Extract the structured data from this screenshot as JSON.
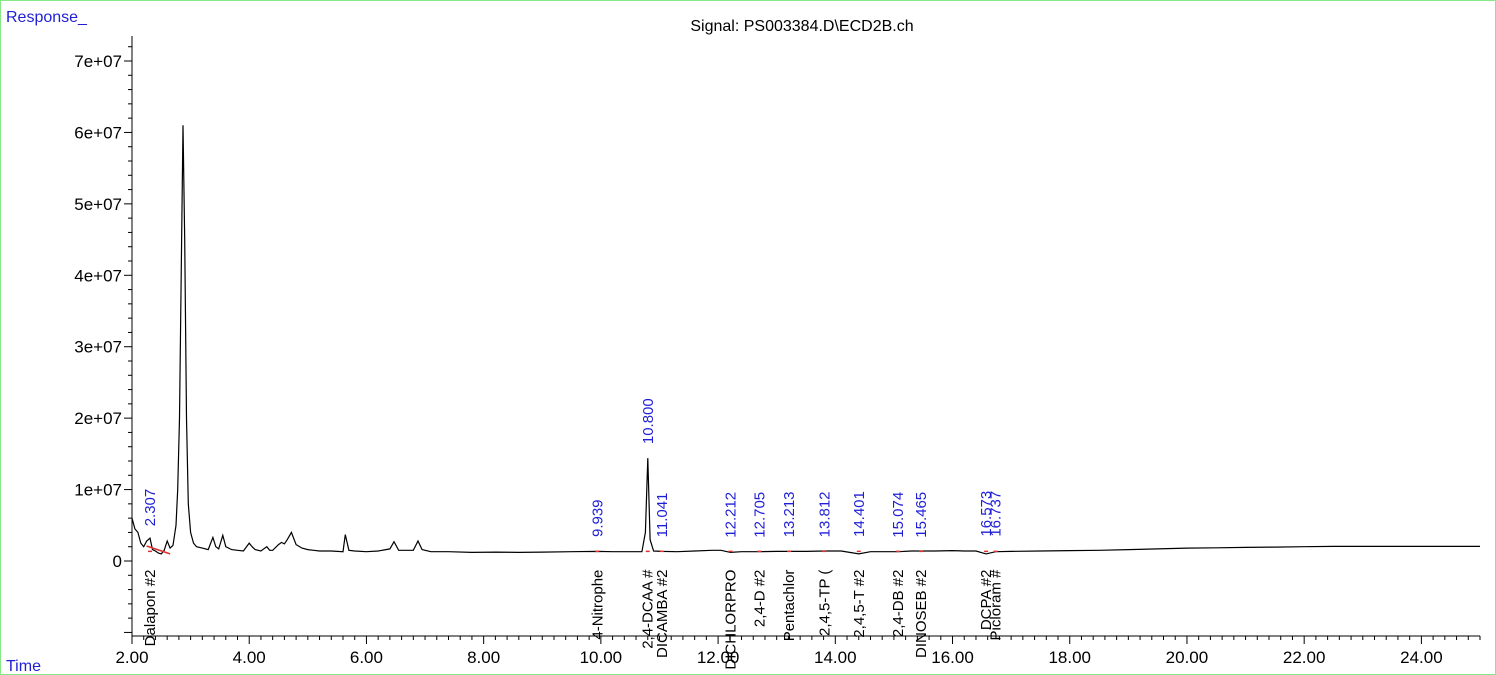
{
  "chart_data": {
    "type": "line",
    "title": "Signal: PS003384.D\\ECD2B.ch",
    "ylabel": "Response_",
    "xlabel": "Time",
    "xlim": [
      2.0,
      25.0
    ],
    "ylim": [
      -10500000,
      73500000
    ],
    "x_ticks": [
      "2.00",
      "4.00",
      "6.00",
      "8.00",
      "10.00",
      "12.00",
      "14.00",
      "16.00",
      "18.00",
      "20.00",
      "22.00",
      "24.00"
    ],
    "y_ticks": [
      "0",
      "1e+07",
      "2e+07",
      "3e+07",
      "4e+07",
      "5e+07",
      "6e+07",
      "7e+07"
    ],
    "series": [
      {
        "x": [
          2.0,
          2.05,
          2.1,
          2.15,
          2.2,
          2.25,
          2.307,
          2.35,
          2.4,
          2.45,
          2.5,
          2.55,
          2.6,
          2.65,
          2.7,
          2.75,
          2.78,
          2.81,
          2.84,
          2.87,
          2.9,
          2.93,
          2.96,
          3.0,
          3.05,
          3.1,
          3.2,
          3.3,
          3.38,
          3.43,
          3.48,
          3.55,
          3.6,
          3.65,
          3.7,
          3.8,
          3.9,
          4.0,
          4.05,
          4.1,
          4.2,
          4.3,
          4.35,
          4.4,
          4.5,
          4.55,
          4.6,
          4.65,
          4.72,
          4.8,
          4.9,
          5.0,
          5.1,
          5.2,
          5.4,
          5.6,
          5.64,
          5.7,
          5.8,
          6.0,
          6.2,
          6.4,
          6.47,
          6.55,
          6.7,
          6.8,
          6.88,
          6.95,
          7.1,
          7.4,
          7.8,
          8.2,
          8.6,
          9.0,
          9.5,
          9.939,
          10.2,
          10.5,
          10.7,
          10.76,
          10.8,
          10.84,
          10.9,
          11.041,
          11.3,
          11.6,
          11.9,
          12.05,
          12.212,
          12.4,
          12.705,
          13.0,
          13.213,
          13.5,
          13.812,
          14.1,
          14.401,
          14.6,
          14.8,
          15.074,
          15.3,
          15.465,
          15.7,
          16.0,
          16.2,
          16.4,
          16.573,
          16.737,
          17.0,
          17.5,
          18.0,
          18.5,
          19.0,
          19.5,
          20.0,
          20.5,
          21.0,
          21.5,
          22.0,
          22.5,
          23.0,
          23.5,
          24.0,
          24.5,
          25.0
        ],
        "y": [
          6000000,
          4500000,
          4000000,
          2500000,
          2000000,
          2800000,
          3200000,
          1600000,
          1400000,
          1100000,
          1000000,
          1500000,
          2800000,
          1800000,
          2200000,
          5000000,
          10000000,
          20000000,
          40000000,
          61000000,
          45000000,
          20000000,
          8000000,
          4000000,
          2500000,
          2000000,
          1800000,
          1600000,
          3300000,
          2000000,
          1700000,
          3600000,
          2000000,
          1800000,
          1600000,
          1500000,
          1400000,
          2500000,
          2000000,
          1600000,
          1400000,
          2000000,
          1500000,
          1500000,
          2300000,
          2600000,
          2400000,
          3000000,
          4000000,
          2300000,
          1800000,
          1600000,
          1500000,
          1400000,
          1400000,
          1300000,
          3700000,
          1500000,
          1400000,
          1300000,
          1400000,
          1700000,
          2700000,
          1500000,
          1500000,
          1500000,
          2800000,
          1600000,
          1300000,
          1300000,
          1200000,
          1250000,
          1200000,
          1250000,
          1300000,
          1350000,
          1300000,
          1300000,
          1300000,
          4000000,
          14400000,
          3000000,
          1400000,
          1350000,
          1300000,
          1400000,
          1500000,
          1500000,
          1200000,
          1300000,
          1300000,
          1350000,
          1350000,
          1350000,
          1400000,
          1400000,
          1000000,
          1300000,
          1300000,
          1300000,
          1400000,
          1400000,
          1400000,
          1450000,
          1400000,
          1400000,
          1000000,
          1300000,
          1350000,
          1400000,
          1450000,
          1500000,
          1600000,
          1700000,
          1800000,
          1850000,
          1900000,
          1950000,
          2000000,
          2050000,
          2050000,
          2050000,
          2050000,
          2050000,
          2050000
        ]
      }
    ],
    "peak_labels": [
      {
        "x": 2.307,
        "rt": "2.307",
        "name": "Dalapon #2"
      },
      {
        "x": 9.939,
        "rt": "9.939",
        "name": "4-Nitrophe"
      },
      {
        "x": 10.8,
        "rt": "10.800",
        "name": "2,4-DCAA #"
      },
      {
        "x": 11.041,
        "rt": "11.041",
        "name": "DICAMBA #2"
      },
      {
        "x": 12.212,
        "rt": "12.212",
        "name": "DICHLORPRO"
      },
      {
        "x": 12.705,
        "rt": "12.705",
        "name": "2,4-D #2"
      },
      {
        "x": 13.213,
        "rt": "13.213",
        "name": "Pentachlor"
      },
      {
        "x": 13.812,
        "rt": "13.812",
        "name": "2,4,5-TP ("
      },
      {
        "x": 14.401,
        "rt": "14.401",
        "name": "2,4,5-T #2"
      },
      {
        "x": 15.074,
        "rt": "15.074",
        "name": "2,4-DB #2"
      },
      {
        "x": 15.465,
        "rt": "15.465",
        "name": "DINOSEB #2"
      },
      {
        "x": 16.573,
        "rt": "16.573",
        "name": "DCPA #2"
      },
      {
        "x": 16.737,
        "rt": "16.737",
        "name": "Picloram #"
      }
    ],
    "peak_label_heights": [
      2900000.0,
      1400000.0,
      14400000.0,
      1350000.0,
      1300000.0,
      1300000.0,
      1350000.0,
      1350000.0,
      1400000.0,
      1300000.0,
      1300000.0,
      1450000.0,
      1450000.0
    ],
    "legend": "none",
    "grid": false
  },
  "colors": {
    "frame": "#88e888",
    "axis": "#000000",
    "trace": "#000000",
    "baseline": "#e03030",
    "annotation": "#1f1fd6"
  }
}
